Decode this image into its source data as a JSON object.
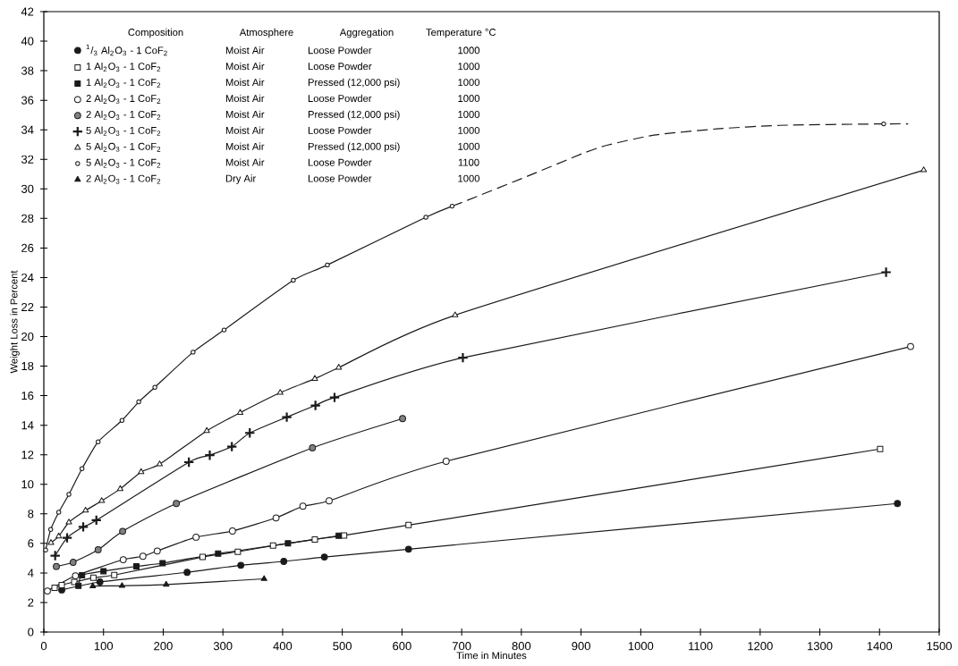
{
  "chart_data": {
    "type": "line",
    "xlabel": "Time in Minutes",
    "ylabel": "Weight Loss in Percent",
    "xlim": [
      0,
      1500
    ],
    "xticks": [
      0,
      100,
      200,
      300,
      400,
      500,
      600,
      700,
      800,
      900,
      1000,
      1100,
      1200,
      1300,
      1400,
      1500
    ],
    "ylim": [
      0,
      42
    ],
    "yticks": [
      0,
      2,
      4,
      6,
      8,
      10,
      12,
      14,
      16,
      18,
      20,
      22,
      24,
      26,
      28,
      30,
      32,
      34,
      36,
      38,
      40,
      42
    ],
    "grid": false,
    "legend": "top left",
    "line_style": "solid",
    "annotations": [
      "Composition",
      "Atmosphere",
      "Aggregation",
      "Temperature °C",
      "Moist Air",
      "Loose Powder",
      "1000",
      "Moist Air",
      "Loose Powder",
      "1000",
      "Moist Air",
      "Pressed (12,000 psi)",
      "1000",
      "Moist Air",
      "Loose Powder",
      "1000",
      "Moist Air",
      "Pressed (12,000 psi)",
      "1000",
      "Moist Air",
      "Loose Powder",
      "1000",
      "Moist Air",
      "Pressed (12,000 psi)",
      "1000",
      "Moist Air",
      "Loose Powder",
      "1100",
      "Dry Air",
      "Loose Powder",
      "1000"
    ],
    "series": [
      {
        "name": "$^{1}$/$_{3}$ Al$_{2}$O$_{3}$ - 1 CoF$_{2}$",
        "color": "#1a1a1a",
        "marker": "circle",
        "x": [
          30,
          94,
          240,
          330,
          402,
          470,
          611,
          1430
        ],
        "values": [
          2.85,
          3.39,
          4.04,
          4.52,
          4.78,
          5.08,
          5.61,
          8.7
        ]
      },
      {
        "name": "1 Al$_{2}$O$_{3}$ - 1 CoF$_{2}$",
        "color": "#1a1a1a",
        "marker": "square",
        "x": [
          18,
          30,
          51,
          83,
          118,
          266,
          325,
          384,
          454,
          503,
          611,
          1401
        ],
        "values": [
          3.0,
          3.18,
          3.39,
          3.67,
          3.86,
          5.08,
          5.43,
          5.85,
          6.27,
          6.54,
          7.24,
          12.39
        ]
      },
      {
        "name": "1 Al$_{2}$O$_{3}$ - 1 CoF$_{2}$",
        "color": "#1a1a1a",
        "marker": "square",
        "x": [
          58,
          64,
          100,
          155,
          199,
          292,
          409,
          494
        ],
        "values": [
          3.13,
          3.85,
          4.12,
          4.45,
          4.66,
          5.31,
          6.0,
          6.52
        ]
      },
      {
        "name": "2 Al$_{2}$O$_{3}$ - 1 CoF$_{2}$",
        "color": "#1a1a1a",
        "marker": "circle",
        "x": [
          6,
          53,
          133,
          166,
          190,
          255,
          316,
          389,
          434,
          478,
          674,
          1452
        ],
        "values": [
          2.78,
          3.81,
          4.9,
          5.13,
          5.49,
          6.42,
          6.84,
          7.73,
          8.52,
          8.88,
          11.56,
          19.33
        ]
      },
      {
        "name": "2 Al$_{2}$O$_{3}$ - 1 CoF$_{2}$",
        "color": "#1a1a1a",
        "marker": "circle",
        "x": [
          21,
          49,
          91,
          132,
          222,
          450,
          601
        ],
        "values": [
          4.44,
          4.72,
          5.57,
          6.82,
          8.7,
          12.47,
          14.45
        ]
      },
      {
        "name": "5 Al$_{2}$O$_{3}$ - 1 CoF$_{2}$",
        "color": "#1a1a1a",
        "marker": "cross",
        "x": [
          19,
          39,
          66,
          88,
          243,
          278,
          315,
          345,
          407,
          455,
          487,
          702,
          1411
        ],
        "values": [
          5.17,
          6.38,
          7.12,
          7.57,
          11.5,
          11.97,
          12.55,
          13.48,
          14.55,
          15.34,
          15.88,
          18.57,
          24.36
        ]
      },
      {
        "name": "5 Al$_{2}$O$_{3}$ - 1 CoF$_{2}$",
        "color": "#1a1a1a",
        "marker": "triangle",
        "x": [
          12,
          25,
          42,
          70,
          97,
          128,
          163,
          194,
          273,
          329,
          396,
          454,
          494,
          689,
          1474
        ],
        "values": [
          6.04,
          6.48,
          7.43,
          8.23,
          8.88,
          9.69,
          10.84,
          11.36,
          13.62,
          14.85,
          16.2,
          17.15,
          17.9,
          21.45,
          31.27
        ]
      },
      {
        "name": "5 Al$_{2}$O$_{3}$ - 1 CoF$_{2}$",
        "color": "#1a1a1a",
        "marker": "circle",
        "x": [
          3,
          11.5,
          25,
          42,
          64,
          91,
          131,
          159,
          186,
          250,
          302,
          418,
          475,
          640,
          684,
          1000,
          1407
        ],
        "values": [
          5.55,
          6.94,
          8.11,
          9.32,
          11.06,
          12.88,
          14.33,
          15.58,
          16.57,
          18.95,
          20.45,
          23.81,
          24.85,
          28.08,
          28.83,
          null,
          34.4
        ]
      },
      {
        "name": "2 Al$_{2}$O$_{3}$ - 1 CoF$_{2}$",
        "color": "#1a1a1a",
        "marker": "triangle",
        "x": [
          82,
          131,
          205,
          369
        ],
        "values": [
          3.11,
          3.13,
          3.21,
          3.6
        ]
      },
      {
        "color": "#1a1a1a",
        "marker": "none",
        "line_style": "dashed",
        "x": [
          684,
          706,
          811,
          901,
          943,
          1022,
          1127,
          1232,
          1407,
          1448
        ],
        "values": [
          28.83,
          29.17,
          30.87,
          32.37,
          32.95,
          33.64,
          34.06,
          34.3,
          34.4,
          34.4
        ]
      }
    ]
  }
}
